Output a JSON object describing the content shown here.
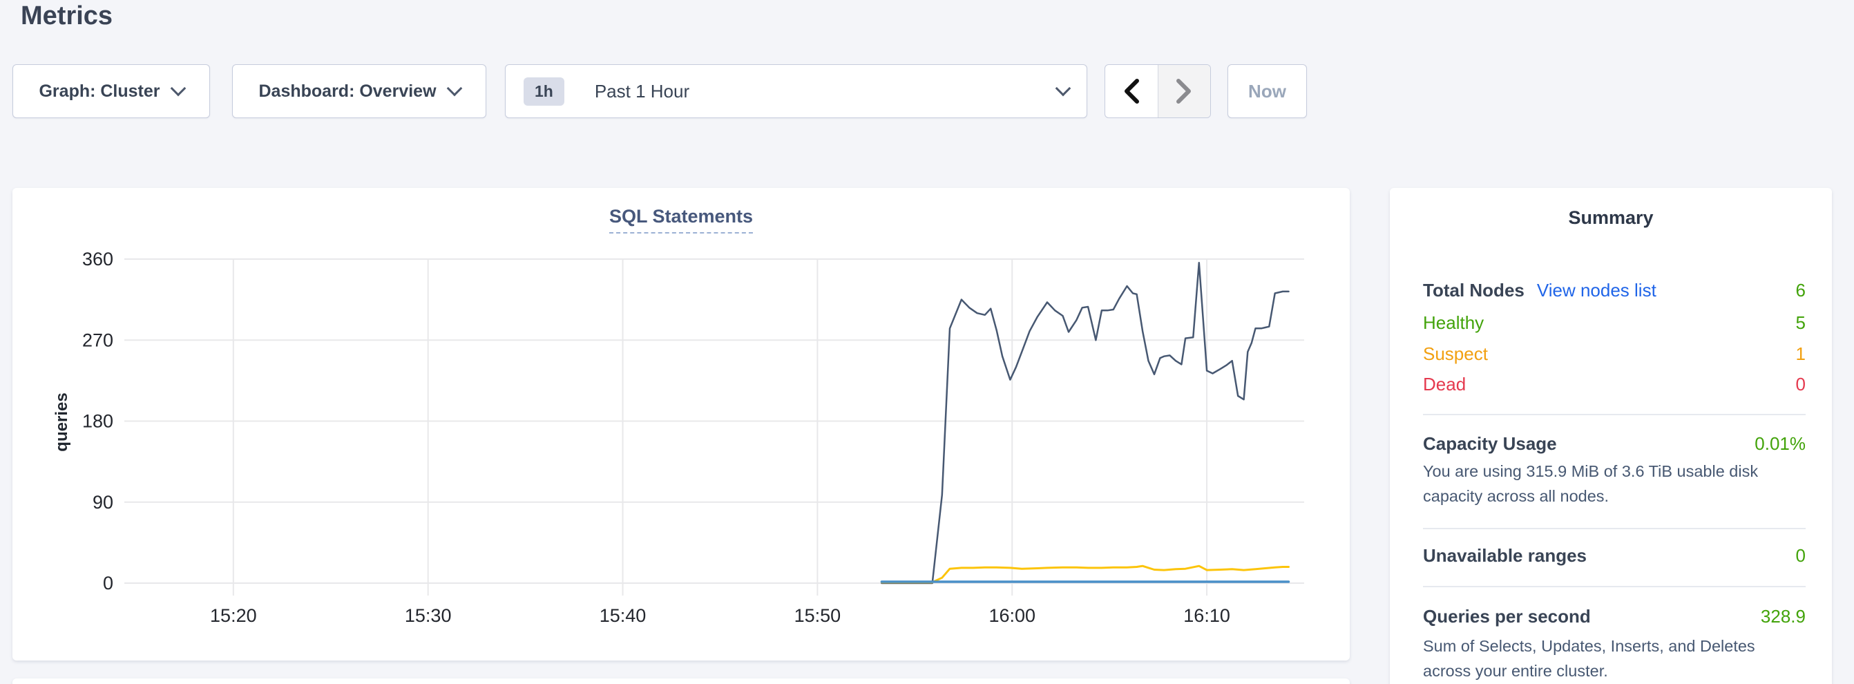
{
  "page": {
    "title": "Metrics"
  },
  "toolbar": {
    "graph_dropdown": {
      "label": "Graph: Cluster"
    },
    "dashboard_dropdown": {
      "label": "Dashboard: Overview"
    },
    "time_selector": {
      "badge": "1h",
      "label": "Past 1 Hour"
    },
    "now_button": {
      "label": "Now",
      "enabled": false
    },
    "prev_enabled": true,
    "next_enabled": false
  },
  "summary": {
    "title": "Summary",
    "total_nodes": {
      "label": "Total Nodes",
      "link_label": "View nodes list",
      "value": "6"
    },
    "status_rows": [
      {
        "label": "Healthy",
        "value": "5",
        "color": "green"
      },
      {
        "label": "Suspect",
        "value": "1",
        "color": "orange"
      },
      {
        "label": "Dead",
        "value": "0",
        "color": "red"
      }
    ],
    "capacity": {
      "label": "Capacity Usage",
      "value": "0.01%",
      "description": "You are using 315.9 MiB of 3.6 TiB usable disk capacity across all nodes."
    },
    "unavailable_ranges": {
      "label": "Unavailable ranges",
      "value": "0"
    },
    "qps": {
      "label": "Queries per second",
      "value": "328.9",
      "description": "Sum of Selects, Updates, Inserts, and Deletes across your entire cluster."
    }
  },
  "colors": {
    "accent_link": "#2065e8",
    "green": "#42a30a",
    "orange": "#f2a011",
    "red": "#e5394e",
    "heading": "#394455",
    "body_text": "#475872",
    "page_bg": "#f4f5f9"
  },
  "chart_data": {
    "type": "line",
    "title": "SQL Statements",
    "ylabel": "queries",
    "x_unit": "minutes after 15:20",
    "xlim": [
      -5.6,
      55.0
    ],
    "ylim": [
      0,
      360
    ],
    "grid": true,
    "legend_position": "none",
    "grid_color": "#e8e8ea",
    "tick_color": "#23262d",
    "yticks": [
      0,
      90,
      180,
      270,
      360
    ],
    "xticks": [
      {
        "x": 0,
        "label": "15:20"
      },
      {
        "x": 10,
        "label": "15:30"
      },
      {
        "x": 20,
        "label": "15:40"
      },
      {
        "x": 30,
        "label": "15:50"
      },
      {
        "x": 40,
        "label": "16:00"
      },
      {
        "x": 50,
        "label": "16:10"
      }
    ],
    "series": [
      {
        "name": "navy-line",
        "color": "#475872",
        "width": 2.5,
        "points": [
          [
            33.3,
            0
          ],
          [
            34.0,
            0
          ],
          [
            34.7,
            0
          ],
          [
            35.4,
            0
          ],
          [
            35.9,
            0
          ],
          [
            36.4,
            98
          ],
          [
            36.8,
            283
          ],
          [
            37.4,
            315
          ],
          [
            37.8,
            306
          ],
          [
            38.2,
            300
          ],
          [
            38.6,
            298
          ],
          [
            38.9,
            305
          ],
          [
            39.2,
            281
          ],
          [
            39.5,
            252
          ],
          [
            39.9,
            226
          ],
          [
            40.2,
            240
          ],
          [
            40.5,
            257
          ],
          [
            40.9,
            280
          ],
          [
            41.3,
            296
          ],
          [
            41.8,
            312
          ],
          [
            42.2,
            303
          ],
          [
            42.6,
            297
          ],
          [
            42.9,
            279
          ],
          [
            43.3,
            292
          ],
          [
            43.6,
            306
          ],
          [
            43.9,
            307
          ],
          [
            44.3,
            270
          ],
          [
            44.6,
            303
          ],
          [
            44.9,
            303
          ],
          [
            45.2,
            304
          ],
          [
            45.5,
            316
          ],
          [
            45.9,
            330
          ],
          [
            46.2,
            322
          ],
          [
            46.4,
            321
          ],
          [
            46.7,
            280
          ],
          [
            47.0,
            247
          ],
          [
            47.3,
            232
          ],
          [
            47.6,
            250
          ],
          [
            47.8,
            252
          ],
          [
            48.1,
            253
          ],
          [
            48.4,
            247
          ],
          [
            48.7,
            243
          ],
          [
            48.9,
            272
          ],
          [
            49.3,
            273
          ],
          [
            49.6,
            356
          ],
          [
            50.0,
            236
          ],
          [
            50.3,
            233
          ],
          [
            50.7,
            238
          ],
          [
            51.0,
            242
          ],
          [
            51.3,
            247
          ],
          [
            51.6,
            208
          ],
          [
            51.9,
            204
          ],
          [
            52.1,
            257
          ],
          [
            52.3,
            267
          ],
          [
            52.5,
            283
          ],
          [
            52.8,
            283
          ],
          [
            53.0,
            284
          ],
          [
            53.2,
            285
          ],
          [
            53.5,
            322
          ],
          [
            53.9,
            324
          ],
          [
            54.2,
            324
          ]
        ]
      },
      {
        "name": "yellow-line",
        "color": "#fcc40a",
        "width": 3,
        "points": [
          [
            33.3,
            1
          ],
          [
            34.0,
            1
          ],
          [
            35.0,
            1
          ],
          [
            35.9,
            1
          ],
          [
            36.4,
            6
          ],
          [
            36.8,
            16
          ],
          [
            37.4,
            17
          ],
          [
            38.0,
            17
          ],
          [
            38.6,
            17.5
          ],
          [
            39.2,
            17.5
          ],
          [
            39.9,
            17
          ],
          [
            40.5,
            16
          ],
          [
            41.3,
            16.5
          ],
          [
            41.8,
            17
          ],
          [
            42.6,
            17.5
          ],
          [
            43.3,
            17.5
          ],
          [
            43.9,
            17
          ],
          [
            44.6,
            17
          ],
          [
            45.2,
            17.5
          ],
          [
            45.9,
            17.5
          ],
          [
            46.4,
            18
          ],
          [
            46.7,
            19
          ],
          [
            47.3,
            15
          ],
          [
            47.8,
            14.5
          ],
          [
            48.4,
            15.5
          ],
          [
            48.9,
            16
          ],
          [
            49.6,
            19
          ],
          [
            50.0,
            14.5
          ],
          [
            50.7,
            15
          ],
          [
            51.3,
            15.5
          ],
          [
            51.9,
            14.5
          ],
          [
            52.5,
            15.5
          ],
          [
            53.0,
            16.5
          ],
          [
            53.5,
            17.5
          ],
          [
            53.9,
            18
          ],
          [
            54.2,
            18
          ]
        ]
      },
      {
        "name": "blue-line",
        "color": "#4a90c8",
        "width": 3.5,
        "points": [
          [
            33.3,
            1.5
          ],
          [
            54.2,
            1.5
          ]
        ]
      }
    ]
  }
}
